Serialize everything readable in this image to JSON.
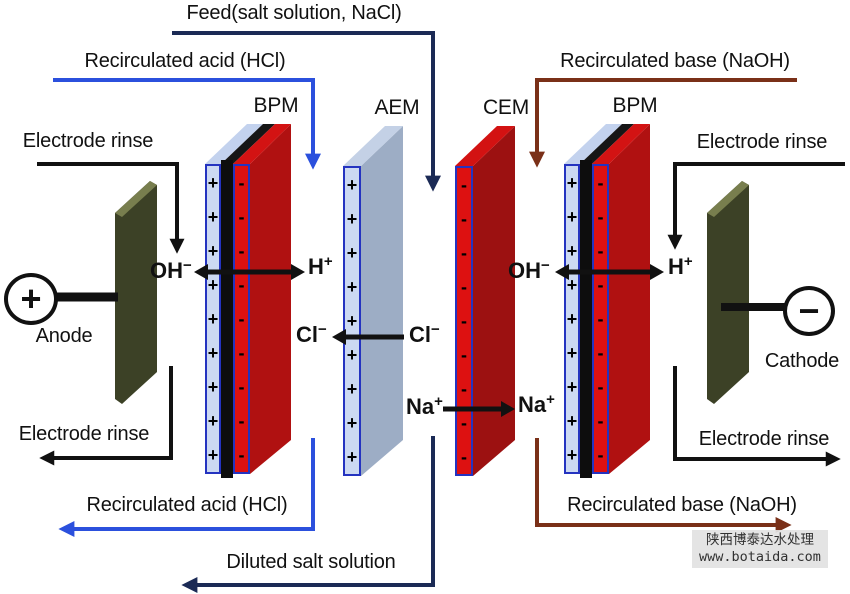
{
  "colors": {
    "feed_line": "#1b2a55",
    "acid_line": "#2b50dd",
    "base_line": "#7a3018",
    "ink": "#111111",
    "pos_layer": "#ccd9f2",
    "neg_layer": "#dd1111",
    "black_core": "#0d0d0d",
    "bpm_body": "#b01111",
    "aem_body": "#9dadc5",
    "cem_body": "#9c1111",
    "electrode_body": "#3c4126",
    "strip_outline": "#2433c0",
    "watermark_bg": "#e3e3e3"
  },
  "flows": {
    "feed": "Feed(salt solution, NaCl)",
    "recirculated_acid": "Recirculated acid (HCl)",
    "recirculated_base": "Recirculated base (NaOH)",
    "diluted_salt": "Diluted salt solution",
    "electrode_rinse": "Electrode rinse"
  },
  "membranes": {
    "bpm_left": {
      "label": "BPM",
      "plus_symbols": "+++++++++",
      "minus_symbols": "---------"
    },
    "aem": {
      "label": "AEM",
      "plus_symbols": "+++++++++"
    },
    "cem": {
      "label": "CEM",
      "minus_symbols": "---------"
    },
    "bpm_right": {
      "label": "BPM",
      "plus_symbols": "+++++++++",
      "minus_symbols": "---------"
    }
  },
  "electrodes": {
    "anode": {
      "label": "Anode",
      "sign": "+"
    },
    "cathode": {
      "label": "Cathode",
      "sign": "−"
    }
  },
  "ions": {
    "oh": {
      "base": "OH",
      "charge": "−"
    },
    "h": {
      "base": "H",
      "charge": "+"
    },
    "cl": {
      "base": "Cl",
      "charge": "−"
    },
    "na": {
      "base": "Na",
      "charge": "+"
    }
  },
  "watermark": {
    "line1": "陕西博泰达水处理",
    "line2": "www.botaida.com"
  }
}
